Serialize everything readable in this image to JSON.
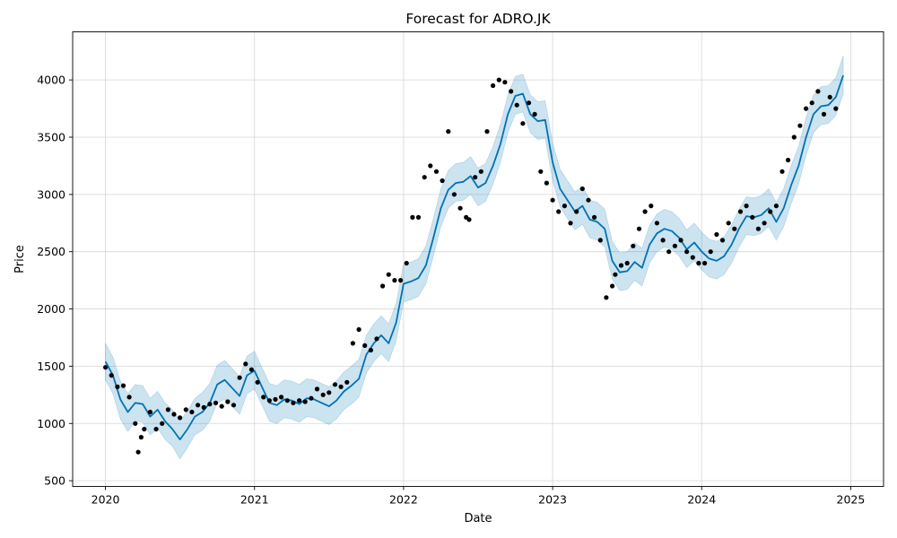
{
  "chart_data": {
    "type": "line",
    "title": "Forecast for ADRO.JK",
    "xlabel": "Date",
    "ylabel": "Price",
    "xlim": [
      2019.78,
      2025.22
    ],
    "ylim": [
      450,
      4420
    ],
    "xticks": [
      2020,
      2021,
      2022,
      2023,
      2024,
      2025
    ],
    "xtick_labels": [
      "2020",
      "2021",
      "2022",
      "2023",
      "2024",
      "2025"
    ],
    "yticks": [
      500,
      1000,
      1500,
      2000,
      2500,
      3000,
      3500,
      4000
    ],
    "ytick_labels": [
      "500",
      "1000",
      "1500",
      "2000",
      "2500",
      "3000",
      "3500",
      "4000"
    ],
    "grid": true,
    "colors": {
      "forecast_line": "#0072B2",
      "uncertainty_band": "#0072B2",
      "observations": "#000000"
    },
    "series": [
      {
        "kind": "forecast",
        "x": [
          2020.0,
          2020.05,
          2020.1,
          2020.15,
          2020.2,
          2020.25,
          2020.3,
          2020.35,
          2020.4,
          2020.45,
          2020.5,
          2020.55,
          2020.6,
          2020.65,
          2020.7,
          2020.75,
          2020.8,
          2020.85,
          2020.9,
          2020.95,
          2021.0,
          2021.05,
          2021.1,
          2021.15,
          2021.2,
          2021.25,
          2021.3,
          2021.35,
          2021.4,
          2021.45,
          2021.5,
          2021.55,
          2021.6,
          2021.65,
          2021.7,
          2021.75,
          2021.8,
          2021.85,
          2021.9,
          2021.95,
          2022.0,
          2022.05,
          2022.1,
          2022.15,
          2022.2,
          2022.25,
          2022.3,
          2022.35,
          2022.4,
          2022.45,
          2022.5,
          2022.55,
          2022.6,
          2022.65,
          2022.7,
          2022.75,
          2022.8,
          2022.85,
          2022.9,
          2022.95,
          2023.0,
          2023.05,
          2023.1,
          2023.15,
          2023.2,
          2023.25,
          2023.3,
          2023.35,
          2023.4,
          2023.45,
          2023.5,
          2023.55,
          2023.6,
          2023.65,
          2023.7,
          2023.75,
          2023.8,
          2023.85,
          2023.9,
          2023.95,
          2024.0,
          2024.05,
          2024.1,
          2024.15,
          2024.2,
          2024.25,
          2024.3,
          2024.35,
          2024.4,
          2024.45,
          2024.5,
          2024.55,
          2024.6,
          2024.65,
          2024.7,
          2024.75,
          2024.8,
          2024.85,
          2024.9,
          2024.95
        ],
        "y": [
          1540,
          1420,
          1210,
          1100,
          1180,
          1170,
          1060,
          1120,
          1020,
          950,
          860,
          950,
          1060,
          1100,
          1180,
          1340,
          1380,
          1310,
          1240,
          1420,
          1460,
          1320,
          1180,
          1160,
          1210,
          1200,
          1170,
          1220,
          1210,
          1180,
          1150,
          1200,
          1280,
          1330,
          1390,
          1600,
          1700,
          1770,
          1700,
          1880,
          2220,
          2240,
          2270,
          2380,
          2620,
          2880,
          3040,
          3100,
          3110,
          3160,
          3060,
          3100,
          3250,
          3440,
          3700,
          3860,
          3880,
          3700,
          3640,
          3650,
          3280,
          3050,
          2950,
          2850,
          2900,
          2780,
          2760,
          2700,
          2420,
          2320,
          2330,
          2410,
          2360,
          2560,
          2660,
          2700,
          2680,
          2620,
          2520,
          2580,
          2500,
          2440,
          2420,
          2460,
          2560,
          2700,
          2810,
          2800,
          2820,
          2880,
          2760,
          2880,
          3080,
          3250,
          3500,
          3700,
          3770,
          3780,
          3850,
          4040
        ]
      },
      {
        "kind": "uncertainty_band",
        "x": [
          2020.0,
          2020.05,
          2020.1,
          2020.15,
          2020.2,
          2020.25,
          2020.3,
          2020.35,
          2020.4,
          2020.45,
          2020.5,
          2020.55,
          2020.6,
          2020.65,
          2020.7,
          2020.75,
          2020.8,
          2020.85,
          2020.9,
          2020.95,
          2021.0,
          2021.05,
          2021.1,
          2021.15,
          2021.2,
          2021.25,
          2021.3,
          2021.35,
          2021.4,
          2021.45,
          2021.5,
          2021.55,
          2021.6,
          2021.65,
          2021.7,
          2021.75,
          2021.8,
          2021.85,
          2021.9,
          2021.95,
          2022.0,
          2022.05,
          2022.1,
          2022.15,
          2022.2,
          2022.25,
          2022.3,
          2022.35,
          2022.4,
          2022.45,
          2022.5,
          2022.55,
          2022.6,
          2022.65,
          2022.7,
          2022.75,
          2022.8,
          2022.85,
          2022.9,
          2022.95,
          2023.0,
          2023.05,
          2023.1,
          2023.15,
          2023.2,
          2023.25,
          2023.3,
          2023.35,
          2023.4,
          2023.45,
          2023.5,
          2023.55,
          2023.6,
          2023.65,
          2023.7,
          2023.75,
          2023.8,
          2023.85,
          2023.9,
          2023.95,
          2024.0,
          2024.05,
          2024.1,
          2024.15,
          2024.2,
          2024.25,
          2024.3,
          2024.35,
          2024.4,
          2024.45,
          2024.5,
          2024.55,
          2024.6,
          2024.65,
          2024.7,
          2024.75,
          2024.8,
          2024.85,
          2024.9,
          2024.95
        ],
        "lower": [
          1380,
          1260,
          1040,
          930,
          1020,
          1010,
          900,
          960,
          860,
          800,
          690,
          790,
          900,
          940,
          1020,
          1180,
          1210,
          1150,
          1080,
          1260,
          1300,
          1160,
          1020,
          1000,
          1050,
          1040,
          1010,
          1060,
          1050,
          1020,
          990,
          1040,
          1120,
          1170,
          1230,
          1440,
          1540,
          1610,
          1540,
          1720,
          2060,
          2080,
          2110,
          2220,
          2460,
          2720,
          2880,
          2940,
          2950,
          3000,
          2900,
          2940,
          3090,
          3280,
          3540,
          3700,
          3720,
          3540,
          3480,
          3490,
          3120,
          2890,
          2790,
          2690,
          2740,
          2620,
          2600,
          2540,
          2260,
          2160,
          2170,
          2250,
          2200,
          2400,
          2500,
          2540,
          2520,
          2460,
          2360,
          2420,
          2340,
          2280,
          2260,
          2300,
          2400,
          2540,
          2650,
          2640,
          2660,
          2720,
          2600,
          2720,
          2920,
          3090,
          3340,
          3540,
          3610,
          3620,
          3690,
          3880
        ],
        "upper": [
          1700,
          1580,
          1370,
          1260,
          1340,
          1330,
          1220,
          1280,
          1180,
          1120,
          1020,
          1110,
          1220,
          1270,
          1350,
          1510,
          1550,
          1480,
          1410,
          1590,
          1630,
          1490,
          1350,
          1330,
          1380,
          1370,
          1340,
          1390,
          1380,
          1350,
          1320,
          1370,
          1450,
          1500,
          1560,
          1770,
          1870,
          1940,
          1870,
          2050,
          2390,
          2410,
          2440,
          2550,
          2790,
          3050,
          3210,
          3270,
          3280,
          3330,
          3230,
          3270,
          3420,
          3610,
          3870,
          4030,
          4050,
          3870,
          3810,
          3820,
          3450,
          3220,
          3120,
          3020,
          3070,
          2950,
          2930,
          2870,
          2590,
          2490,
          2500,
          2580,
          2530,
          2730,
          2830,
          2870,
          2850,
          2790,
          2690,
          2750,
          2670,
          2610,
          2590,
          2630,
          2730,
          2870,
          2980,
          2970,
          2990,
          3050,
          2930,
          3050,
          3250,
          3420,
          3670,
          3870,
          3940,
          3950,
          4020,
          4210
        ]
      },
      {
        "kind": "observed",
        "x": [
          2020.0,
          2020.04,
          2020.08,
          2020.12,
          2020.16,
          2020.2,
          2020.22,
          2020.24,
          2020.26,
          2020.3,
          2020.34,
          2020.38,
          2020.42,
          2020.46,
          2020.5,
          2020.54,
          2020.58,
          2020.62,
          2020.66,
          2020.7,
          2020.74,
          2020.78,
          2020.82,
          2020.86,
          2020.9,
          2020.94,
          2020.98,
          2021.02,
          2021.06,
          2021.1,
          2021.14,
          2021.18,
          2021.22,
          2021.26,
          2021.3,
          2021.34,
          2021.38,
          2021.42,
          2021.46,
          2021.5,
          2021.54,
          2021.58,
          2021.62,
          2021.66,
          2021.7,
          2021.74,
          2021.78,
          2021.82,
          2021.86,
          2021.9,
          2021.94,
          2021.98,
          2022.02,
          2022.06,
          2022.1,
          2022.14,
          2022.18,
          2022.22,
          2022.26,
          2022.3,
          2022.34,
          2022.38,
          2022.42,
          2022.44,
          2022.48,
          2022.52,
          2022.56,
          2022.6,
          2022.64,
          2022.68,
          2022.72,
          2022.76,
          2022.8,
          2022.84,
          2022.88,
          2022.92,
          2022.96,
          2023.0,
          2023.04,
          2023.08,
          2023.12,
          2023.16,
          2023.2,
          2023.24,
          2023.28,
          2023.32,
          2023.36,
          2023.4,
          2023.42,
          2023.46,
          2023.5,
          2023.54,
          2023.58,
          2023.62,
          2023.66,
          2023.7,
          2023.74,
          2023.78,
          2023.82,
          2023.86,
          2023.9,
          2023.94,
          2023.98,
          2024.02,
          2024.06,
          2024.1,
          2024.14,
          2024.18,
          2024.22,
          2024.26,
          2024.3,
          2024.34,
          2024.38,
          2024.42,
          2024.46,
          2024.5,
          2024.54,
          2024.58,
          2024.62,
          2024.66,
          2024.7,
          2024.74,
          2024.78,
          2024.82,
          2024.86,
          2024.9
        ],
        "y": [
          1490,
          1420,
          1320,
          1330,
          1230,
          1000,
          750,
          880,
          950,
          1100,
          950,
          1000,
          1120,
          1080,
          1050,
          1120,
          1100,
          1160,
          1140,
          1170,
          1180,
          1150,
          1190,
          1160,
          1400,
          1520,
          1470,
          1360,
          1230,
          1200,
          1210,
          1230,
          1200,
          1180,
          1200,
          1190,
          1220,
          1300,
          1250,
          1270,
          1340,
          1320,
          1360,
          1700,
          1820,
          1680,
          1640,
          1740,
          2200,
          2300,
          2250,
          2250,
          2400,
          2800,
          2800,
          3150,
          3250,
          3200,
          3120,
          3550,
          3000,
          2880,
          2800,
          2780,
          3150,
          3200,
          3550,
          3950,
          4000,
          3980,
          3900,
          3780,
          3620,
          3800,
          3700,
          3200,
          3100,
          2950,
          2850,
          2900,
          2750,
          2850,
          3050,
          2950,
          2800,
          2600,
          2100,
          2200,
          2300,
          2380,
          2400,
          2550,
          2700,
          2850,
          2900,
          2750,
          2600,
          2500,
          2550,
          2600,
          2500,
          2450,
          2400,
          2400,
          2500,
          2650,
          2600,
          2750,
          2700,
          2850,
          2900,
          2800,
          2700,
          2750,
          2850,
          2900,
          3200,
          3300,
          3500,
          3600,
          3750,
          3800,
          3900,
          3700,
          3850,
          3750
        ]
      }
    ]
  }
}
